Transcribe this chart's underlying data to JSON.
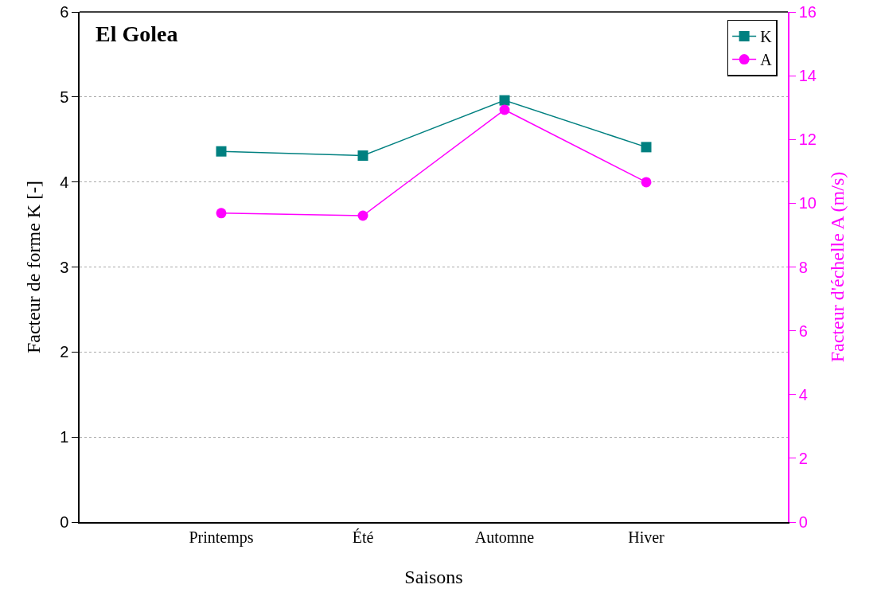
{
  "chart_data": {
    "type": "line",
    "title": "El Golea",
    "xlabel": "Saisons",
    "ylabel": "Facteur de forme K [-]",
    "y2label": "Facteur d'échelle A (m/s)",
    "categories": [
      "Printemps",
      "Été",
      "Automne",
      "Hiver"
    ],
    "series": [
      {
        "name": "K",
        "color": "#008080",
        "values": [
          4.36,
          4.31,
          4.96,
          4.41
        ],
        "marker": "square"
      },
      {
        "name": "A",
        "color": "#ff00ff",
        "values": [
          9.69,
          9.61,
          12.93,
          10.66
        ],
        "marker": "circle",
        "axis": "y2"
      }
    ],
    "ylim": [
      0,
      6
    ],
    "yticks": [
      0,
      1,
      2,
      3,
      4,
      5,
      6
    ],
    "y2lim": [
      0,
      16
    ],
    "y2ticks": [
      0,
      2,
      4,
      6,
      8,
      10,
      12,
      14,
      16
    ],
    "grid": "y",
    "legend": "top right",
    "line_style": "solid"
  }
}
